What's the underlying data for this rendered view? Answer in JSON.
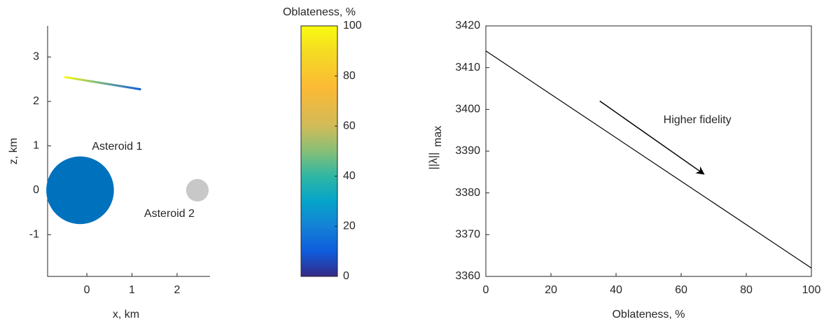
{
  "chart_data": [
    {
      "type": "scatter",
      "xlabel": "x, km",
      "ylabel": "z, km",
      "xlim": [
        -0.87,
        2.73
      ],
      "ylim": [
        -1.94,
        3.7
      ],
      "xticks": [
        0,
        1,
        2
      ],
      "yticks": [
        -1,
        0,
        1,
        2,
        3
      ],
      "bodies": [
        {
          "name": "Asteroid 1",
          "x": -0.15,
          "y": 0,
          "r": 0.75,
          "color": "#0072bd"
        },
        {
          "name": "Asteroid 2",
          "x": 2.45,
          "y": 0,
          "r": 0.25,
          "color": "#c8c8c8"
        }
      ],
      "trajectory": {
        "x": [
          -0.5,
          1.2
        ],
        "y": [
          2.55,
          2.27
        ]
      },
      "colorbar": {
        "title": "Oblateness, %",
        "lim": [
          0,
          100
        ],
        "ticks": [
          0,
          20,
          40,
          60,
          80,
          100
        ]
      }
    },
    {
      "type": "line",
      "xlabel": "Oblateness, %",
      "ylabel": "||λ||",
      "ylabel_subscript": "max",
      "x": [
        0,
        100
      ],
      "values": [
        3414,
        3362
      ],
      "color": "#000000",
      "xlim": [
        0,
        100
      ],
      "ylim": [
        3360,
        3420
      ],
      "xticks": [
        0,
        20,
        40,
        60,
        80,
        100
      ],
      "yticks": [
        3360,
        3370,
        3380,
        3390,
        3400,
        3410,
        3420
      ],
      "annotation": {
        "text": "Higher fidelity",
        "arrow_x": [
          35,
          67
        ],
        "arrow_y": [
          3402,
          3384.5
        ]
      }
    }
  ]
}
